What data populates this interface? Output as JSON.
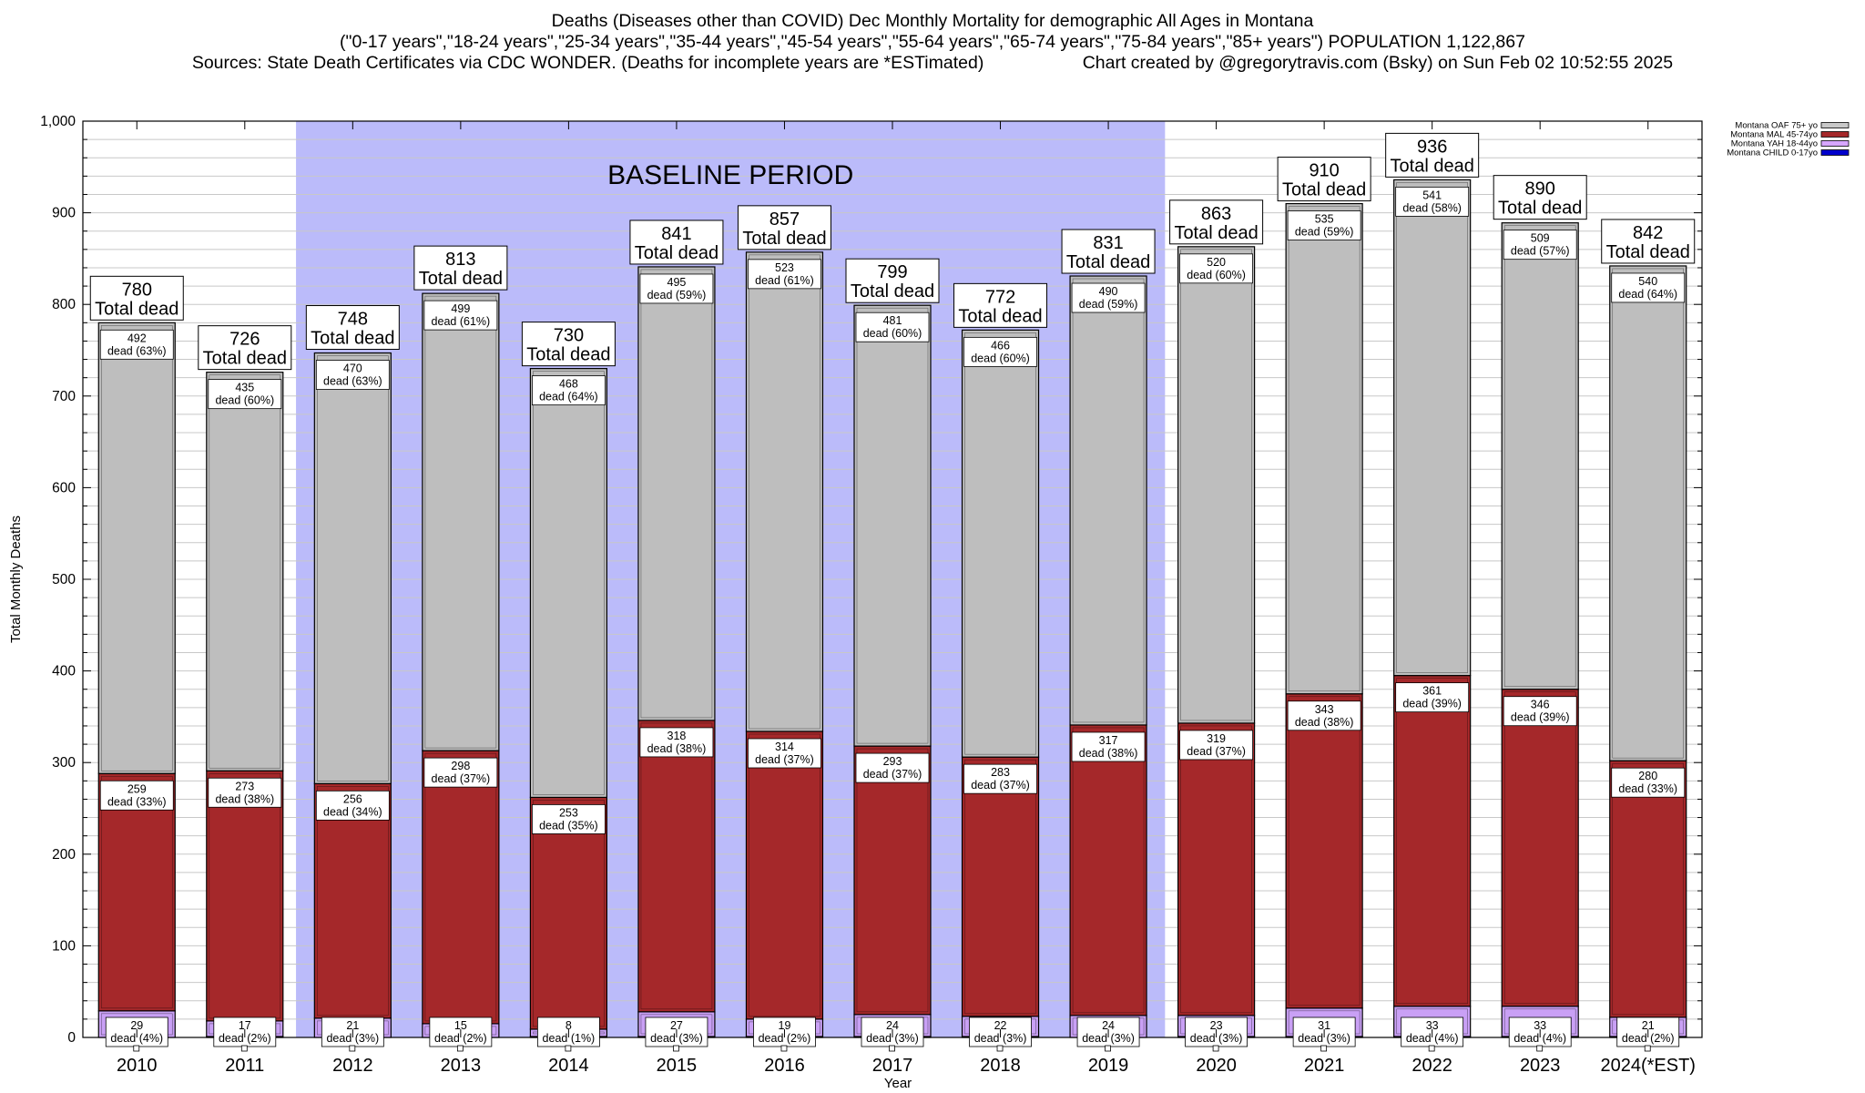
{
  "header": {
    "title": "Deaths (Diseases other than COVID) Dec Monthly Mortality for demographic All Ages in Montana",
    "subtitle": "(\"0-17 years\",\"18-24 years\",\"25-34 years\",\"35-44 years\",\"45-54 years\",\"55-64 years\",\"65-74 years\",\"75-84 years\",\"85+ years\") POPULATION 1,122,867",
    "sources": "Sources: State Death Certificates via CDC WONDER. (Deaths for incomplete years are *ESTimated)",
    "credit": "Chart created by @gregorytravis.com (Bsky) on Sun Feb 02 10:52:55 2025"
  },
  "chart_data": {
    "type": "bar",
    "stacked": true,
    "xlabel": "Year",
    "ylabel": "Total Monthly Deaths",
    "ylim": [
      0,
      1000
    ],
    "yticks": [
      "0",
      "100",
      "200",
      "300",
      "400",
      "500",
      "600",
      "700",
      "800",
      "900",
      "1,000"
    ],
    "grid": true,
    "legend_position": "top-right",
    "baseline_label": "BASELINE PERIOD",
    "baseline_range": [
      "2012",
      "2019"
    ],
    "total_label": "Total dead",
    "categories": [
      "2010",
      "2011",
      "2012",
      "2013",
      "2014",
      "2015",
      "2016",
      "2017",
      "2018",
      "2019",
      "2020",
      "2021",
      "2022",
      "2023",
      "2024(*EST)"
    ],
    "totals": [
      780,
      726,
      748,
      813,
      730,
      841,
      857,
      799,
      772,
      831,
      863,
      910,
      936,
      890,
      842
    ],
    "series": [
      {
        "name": "Montana CHILD 0-17yo",
        "color": "#0000cc",
        "legend_swatch": "#0000cc",
        "values": [
          0,
          1,
          0,
          0,
          1,
          1,
          1,
          1,
          1,
          0,
          1,
          1,
          1,
          1,
          1
        ],
        "labels": [],
        "pcts": []
      },
      {
        "name": "Montana YAH 18-44yo",
        "color": "#c9a0f5",
        "legend_swatch": "#d7a6ff",
        "values": [
          29,
          17,
          21,
          15,
          8,
          27,
          19,
          24,
          22,
          24,
          23,
          31,
          33,
          33,
          21
        ],
        "labels": [
          "29",
          "17",
          "21",
          "15",
          "8",
          "27",
          "19",
          "24",
          "22",
          "24",
          "23",
          "31",
          "33",
          "33",
          "21"
        ],
        "pcts": [
          "dead (4%)",
          "dead (2%)",
          "dead (3%)",
          "dead (2%)",
          "dead (1%)",
          "dead (3%)",
          "dead (2%)",
          "dead (3%)",
          "dead (3%)",
          "dead (3%)",
          "dead (3%)",
          "dead (3%)",
          "dead (4%)",
          "dead (4%)",
          "dead (2%)"
        ]
      },
      {
        "name": "Montana MAL 45-74yo",
        "color": "#a5282a",
        "legend_swatch": "#a5282a",
        "values": [
          259,
          273,
          256,
          298,
          253,
          318,
          314,
          293,
          283,
          317,
          319,
          343,
          361,
          346,
          280
        ],
        "labels": [
          "259",
          "273",
          "256",
          "298",
          "253",
          "318",
          "314",
          "293",
          "283",
          "317",
          "319",
          "343",
          "361",
          "346",
          "280"
        ],
        "pcts": [
          "dead (33%)",
          "dead (38%)",
          "dead (34%)",
          "dead (37%)",
          "dead (35%)",
          "dead (38%)",
          "dead (37%)",
          "dead (37%)",
          "dead (37%)",
          "dead (38%)",
          "dead (37%)",
          "dead (38%)",
          "dead (39%)",
          "dead (39%)",
          "dead (33%)"
        ]
      },
      {
        "name": "Montana OAF 75+ yo",
        "color": "#bebebe",
        "legend_swatch": "#c8c8c8",
        "values": [
          492,
          435,
          470,
          499,
          468,
          495,
          523,
          481,
          466,
          490,
          520,
          535,
          541,
          509,
          540
        ],
        "labels": [
          "492",
          "435",
          "470",
          "499",
          "468",
          "495",
          "523",
          "481",
          "466",
          "490",
          "520",
          "535",
          "541",
          "509",
          "540"
        ],
        "pcts": [
          "dead (63%)",
          "dead (60%)",
          "dead (63%)",
          "dead (61%)",
          "dead (64%)",
          "dead (59%)",
          "dead (61%)",
          "dead (60%)",
          "dead (60%)",
          "dead (59%)",
          "dead (60%)",
          "dead (59%)",
          "dead (58%)",
          "dead (57%)",
          "dead (64%)"
        ]
      }
    ],
    "legend_order": [
      "Montana OAF 75+ yo",
      "Montana MAL 45-74yo",
      "Montana YAH 18-44yo",
      "Montana CHILD 0-17yo"
    ],
    "colors": {
      "baseline_bg": "#bbbbfa",
      "axis": "#000000",
      "grid": "#c8c8c8"
    }
  }
}
